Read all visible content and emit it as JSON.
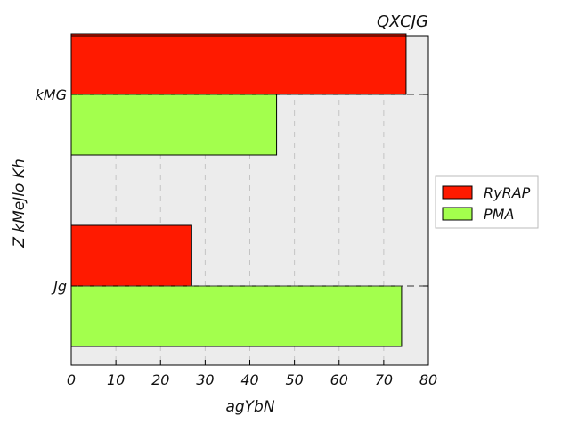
{
  "chart_data": {
    "type": "bar",
    "orientation": "horizontal",
    "title": "QXCJG",
    "xlabel": "agYbN",
    "ylabel": "Z kMeJlo  Kh",
    "categories": [
      "kMG",
      "Jg"
    ],
    "series": [
      {
        "name": "RyRAP",
        "values": [
          75,
          27
        ],
        "color": "#ff1a00"
      },
      {
        "name": "PMA",
        "values": [
          46,
          74
        ],
        "color": "#a3ff4d"
      }
    ],
    "xlim": [
      0,
      80
    ],
    "xticks": [
      "0",
      "10",
      "20",
      "30",
      "40",
      "50",
      "60",
      "70",
      "80"
    ],
    "grid": true,
    "legend_position": "right"
  }
}
